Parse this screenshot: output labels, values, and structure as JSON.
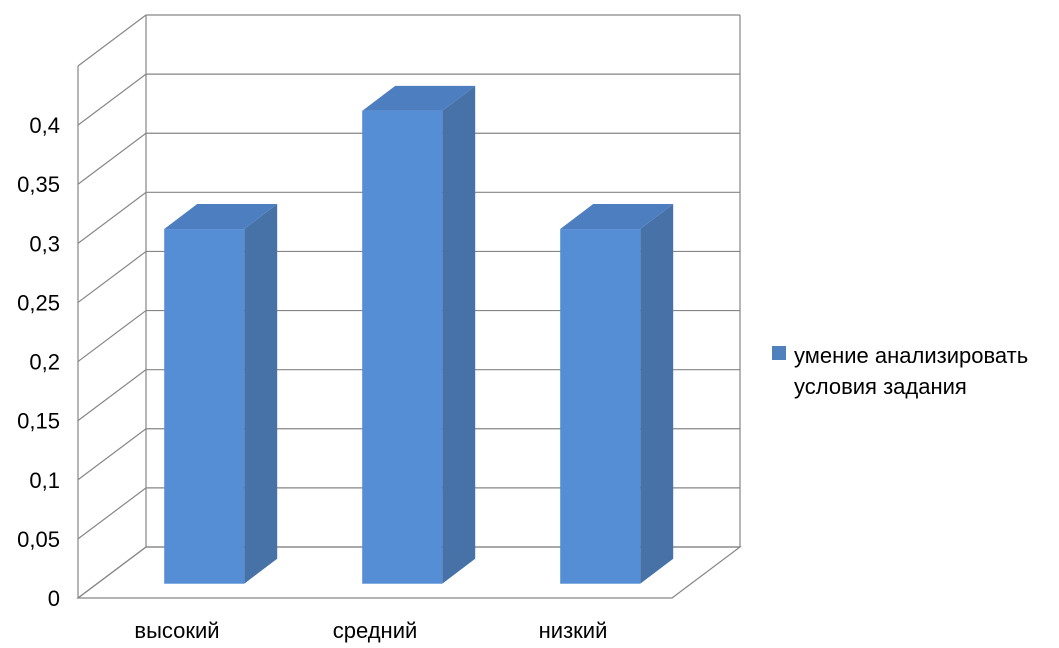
{
  "chart_data": {
    "type": "bar",
    "categories": [
      "высокий",
      "средний",
      "низкий"
    ],
    "series": [
      {
        "name": "умение анализировать условия задания",
        "values": [
          0.3,
          0.4,
          0.3
        ]
      }
    ],
    "title": "",
    "xlabel": "",
    "ylabel": "",
    "ylim": [
      0,
      0.45
    ],
    "yticks": [
      "0",
      "0,05",
      "0,1",
      "0,15",
      "0,2",
      "0,25",
      "0,3",
      "0,35",
      "0,4"
    ],
    "grid": true,
    "legend_position": "right",
    "three_d": true,
    "colors": {
      "bar_front": "#558ed5",
      "bar_side": "#4672a8",
      "bar_top": "#4d7fc0",
      "gridline": "#868686",
      "legend_swatch": "#4f81bd"
    }
  }
}
